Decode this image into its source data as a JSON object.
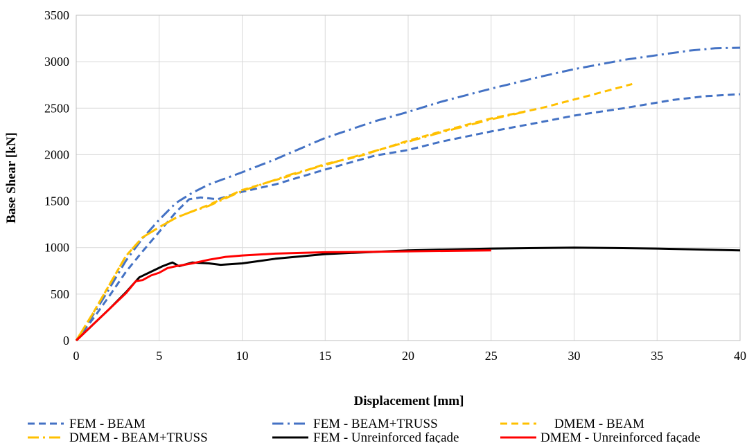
{
  "chart_data": {
    "type": "line",
    "xlabel": "Displacement [mm]",
    "ylabel": "Base Shear [kN]",
    "xlim": [
      0,
      40
    ],
    "ylim": [
      0,
      3500
    ],
    "x_ticks": [
      0,
      5,
      10,
      15,
      20,
      25,
      30,
      35,
      40
    ],
    "y_ticks": [
      0,
      500,
      1000,
      1500,
      2000,
      2500,
      3000,
      3500
    ],
    "grid": true,
    "legend_position": "bottom",
    "series": [
      {
        "name": "FEM - BEAM",
        "color": "#4472C4",
        "dash": "dash",
        "x": [
          0,
          1,
          2,
          3,
          4,
          5,
          6,
          6.8,
          7.5,
          8.5,
          10,
          12,
          15,
          18,
          20,
          22,
          25,
          28,
          30,
          33,
          36,
          38,
          40
        ],
        "y": [
          0,
          230,
          480,
          740,
          960,
          1170,
          1380,
          1520,
          1540,
          1520,
          1600,
          1680,
          1840,
          1990,
          2050,
          2140,
          2250,
          2350,
          2420,
          2500,
          2590,
          2630,
          2650
        ]
      },
      {
        "name": "FEM - BEAM+TRUSS",
        "color": "#4472C4",
        "dash": "dashdot",
        "x": [
          0,
          1,
          2,
          3,
          4,
          5,
          6,
          7,
          8,
          10,
          12,
          15,
          18,
          20,
          22,
          25,
          28,
          30,
          33,
          35,
          37,
          38.5,
          40
        ],
        "y": [
          0,
          270,
          560,
          860,
          1100,
          1300,
          1480,
          1590,
          1680,
          1810,
          1950,
          2180,
          2360,
          2460,
          2570,
          2710,
          2840,
          2920,
          3020,
          3070,
          3120,
          3145,
          3150
        ]
      },
      {
        "name": "DMEM - BEAM",
        "color": "#FFC000",
        "dash": "dash",
        "x": [
          0,
          1,
          2,
          3,
          4,
          5,
          6,
          7,
          8,
          10,
          13,
          15,
          17,
          20,
          22,
          25,
          28,
          31,
          33.5
        ],
        "y": [
          0,
          290,
          600,
          910,
          1110,
          1220,
          1320,
          1390,
          1460,
          1620,
          1780,
          1900,
          1980,
          2150,
          2250,
          2390,
          2500,
          2640,
          2760
        ]
      },
      {
        "name": "DMEM - BEAM+TRUSS",
        "color": "#FFC000",
        "dash": "dashdot",
        "x": [
          0,
          1,
          2,
          3,
          4,
          5,
          6,
          7,
          8,
          10,
          13,
          15,
          17,
          20,
          22,
          25,
          27
        ],
        "y": [
          0,
          290,
          600,
          910,
          1110,
          1220,
          1320,
          1390,
          1450,
          1610,
          1790,
          1890,
          1990,
          2140,
          2240,
          2380,
          2460
        ]
      },
      {
        "name": "FEM - Unreinforced façade",
        "color": "#000000",
        "dash": "solid",
        "x": [
          0,
          1,
          2,
          3,
          3.8,
          4.5,
          5.2,
          5.8,
          6.2,
          7,
          8,
          8.7,
          10,
          12,
          15,
          20,
          25,
          30,
          35,
          40
        ],
        "y": [
          0,
          170,
          340,
          520,
          680,
          740,
          800,
          840,
          800,
          840,
          830,
          815,
          830,
          880,
          930,
          970,
          990,
          1000,
          990,
          970
        ]
      },
      {
        "name": "DMEM - Unreinforced façade",
        "color": "#FF0000",
        "dash": "solid",
        "x": [
          0,
          1,
          2,
          3,
          3.6,
          4,
          4.5,
          5,
          5.5,
          6,
          7,
          8,
          9,
          10,
          12,
          15,
          18,
          20,
          25
        ],
        "y": [
          0,
          170,
          340,
          510,
          640,
          650,
          700,
          730,
          780,
          800,
          830,
          870,
          900,
          915,
          935,
          950,
          955,
          960,
          970
        ]
      }
    ]
  }
}
